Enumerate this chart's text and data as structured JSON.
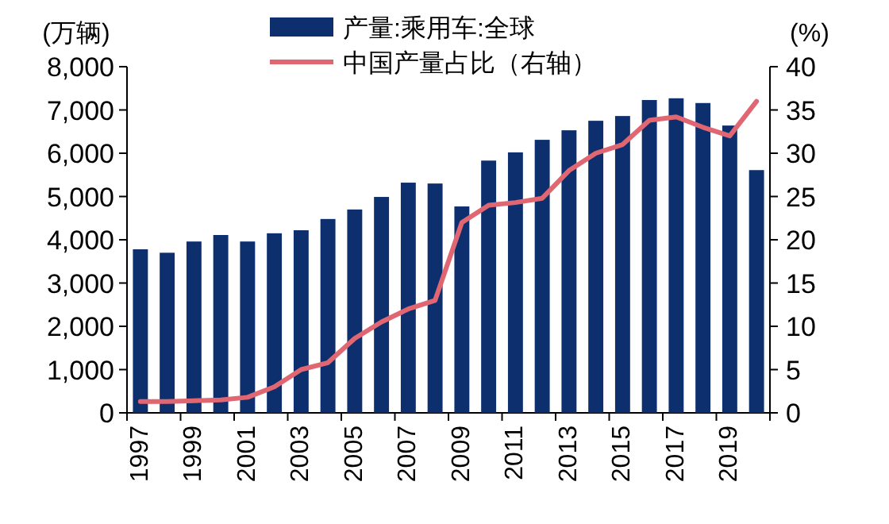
{
  "chart_data": {
    "type": "bar",
    "ylabel": "(万辆)",
    "y2label": "(%)",
    "categories": [
      "1997",
      null,
      "1999",
      null,
      "2001",
      null,
      "2003",
      null,
      "2005",
      null,
      "2007",
      null,
      "2009",
      null,
      "2011",
      null,
      "2013",
      null,
      "2015",
      null,
      "2017",
      null,
      "2019",
      null
    ],
    "series": [
      {
        "name": "产量:乘用车:全球",
        "color": "#0d2f6e",
        "values": [
          3780,
          3700,
          3960,
          4110,
          3960,
          4150,
          4220,
          4480,
          4700,
          4990,
          5320,
          5300,
          4770,
          5830,
          6020,
          6310,
          6530,
          6750,
          6860,
          7230,
          7270,
          7160,
          6640,
          5610
        ]
      },
      {
        "name": "中国产量占比（右轴）",
        "type": "line",
        "axis": "y2",
        "color": "#e06672",
        "values": [
          1.3,
          1.3,
          1.4,
          1.5,
          1.8,
          3.0,
          5.0,
          5.8,
          8.6,
          10.5,
          12.0,
          13.0,
          22,
          24,
          24.3,
          24.8,
          28,
          30,
          31,
          33.8,
          34.2,
          33,
          32,
          36
        ]
      }
    ],
    "ylim": [
      0,
      8000
    ],
    "yticks": [
      {
        "value": 0,
        "label": "0"
      },
      {
        "value": 1000,
        "label": "1,000"
      },
      {
        "value": 2000,
        "label": "2,000"
      },
      {
        "value": 3000,
        "label": "3,000"
      },
      {
        "value": 4000,
        "label": "4,000"
      },
      {
        "value": 5000,
        "label": "5,000"
      },
      {
        "value": 6000,
        "label": "6,000"
      },
      {
        "value": 7000,
        "label": "7,000"
      },
      {
        "value": 8000,
        "label": "8,000"
      }
    ],
    "y2lim": [
      0,
      40
    ],
    "y2ticks": [
      0,
      5,
      10,
      15,
      20,
      25,
      30,
      35,
      40
    ],
    "grid": false,
    "legend": "top",
    "line_style": "solid",
    "marker": "none"
  }
}
